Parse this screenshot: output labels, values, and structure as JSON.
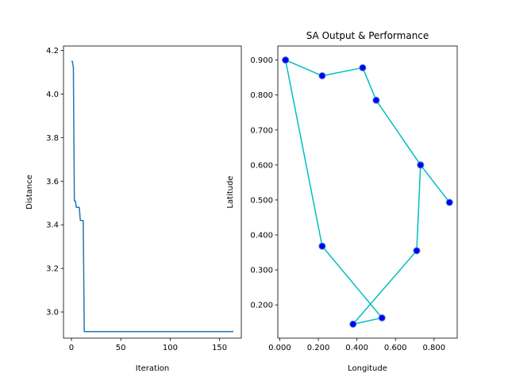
{
  "chart_data": [
    {
      "type": "line",
      "title": "",
      "xlabel": "Iteration",
      "ylabel": "Distance",
      "xlim": [
        -8,
        172
      ],
      "ylim": [
        2.88,
        4.22
      ],
      "xticks": [
        0,
        50,
        100,
        150
      ],
      "xtick_labels": [
        "0",
        "50",
        "100",
        "150"
      ],
      "yticks": [
        3.0,
        3.2,
        3.4,
        3.6,
        3.8,
        4.0,
        4.2
      ],
      "ytick_labels": [
        "3.0",
        "3.2",
        "3.4",
        "3.6",
        "3.8",
        "4.0",
        "4.2"
      ],
      "grid": false,
      "color": "#1f77b4",
      "series": [
        {
          "x": [
            0,
            1,
            2,
            3,
            4,
            5,
            6,
            7,
            8,
            9,
            10,
            11,
            12,
            13,
            14,
            20,
            50,
            100,
            150,
            164
          ],
          "y": [
            4.15,
            4.15,
            4.12,
            3.51,
            3.51,
            3.48,
            3.48,
            3.48,
            3.48,
            3.42,
            3.42,
            3.42,
            3.42,
            2.91,
            2.91,
            2.91,
            2.91,
            2.91,
            2.91,
            2.91
          ]
        }
      ]
    },
    {
      "type": "line",
      "title": "SA Output & Performance",
      "xlabel": "Longitude",
      "ylabel": "Latitude",
      "xlim": [
        -0.01,
        0.92
      ],
      "ylim": [
        0.105,
        0.94
      ],
      "xticks": [
        0.0,
        0.2,
        0.4,
        0.6,
        0.8
      ],
      "xtick_labels": [
        "0.000",
        "0.200",
        "0.400",
        "0.600",
        "0.800"
      ],
      "yticks": [
        0.2,
        0.3,
        0.4,
        0.5,
        0.6,
        0.7,
        0.8,
        0.9
      ],
      "ytick_labels": [
        "0.200",
        "0.300",
        "0.400",
        "0.500",
        "0.600",
        "0.700",
        "0.800",
        "0.900"
      ],
      "grid": false,
      "line_color": "#00bfbf",
      "marker_face": "#0000ff",
      "marker_edge": "#4a7fc8",
      "series": [
        {
          "x": [
            0.03,
            0.22,
            0.43,
            0.5,
            0.73,
            0.88,
            0.73,
            0.71,
            0.38,
            0.53,
            0.22,
            0.03
          ],
          "y": [
            0.9,
            0.855,
            0.878,
            0.785,
            0.6,
            0.493,
            0.6,
            0.355,
            0.145,
            0.163,
            0.368,
            0.9
          ]
        }
      ]
    }
  ]
}
